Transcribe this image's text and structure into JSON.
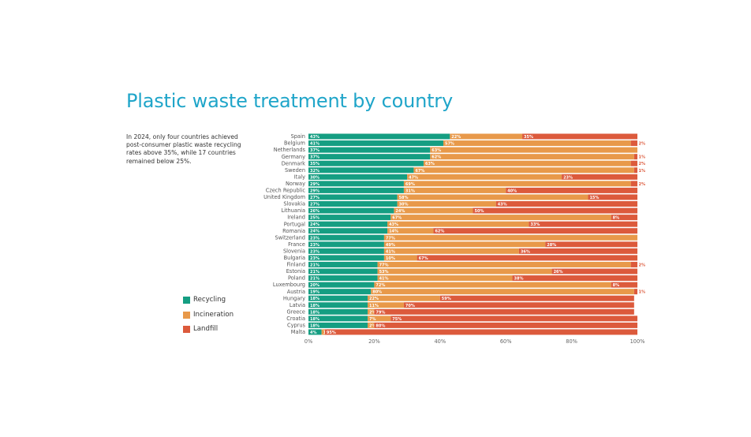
{
  "title": "Plastic waste treatment by country",
  "subtitle": "In 2024, only four countries achieved post-consumer plastic waste recycling rates above 35%, while 17 countries remained below 25%.",
  "legend": [
    {
      "label": "Recycling",
      "color": "#159e82"
    },
    {
      "label": "Incineration",
      "color": "#e8994a"
    },
    {
      "label": "Landfill",
      "color": "#dc5a3c"
    }
  ],
  "chart_data": {
    "type": "bar",
    "orientation": "horizontal",
    "stacked": true,
    "title": "Plastic waste treatment by country",
    "xlim": [
      0,
      100
    ],
    "x_ticks": [
      "0%",
      "20%",
      "40%",
      "60%",
      "80%",
      "100%"
    ],
    "legend_position": "left",
    "categories": [
      "Spain",
      "Belgium",
      "Netherlands",
      "Germany",
      "Denmark",
      "Sweden",
      "Italy",
      "Norway",
      "Czech Republic",
      "United Kingdom",
      "Slovakia",
      "Lithuania",
      "Ireland",
      "Portugal",
      "Romania",
      "Switzerland",
      "France",
      "Slovenia",
      "Bulgaria",
      "Finland",
      "Estonia",
      "Poland",
      "Luxembourg",
      "Austria",
      "Hungary",
      "Latvia",
      "Greece",
      "Croatia",
      "Cyprus",
      "Malta"
    ],
    "series": [
      {
        "name": "Recycling",
        "color": "#159e82",
        "values": [
          43,
          41,
          37,
          37,
          35,
          32,
          30,
          29,
          29,
          27,
          27,
          26,
          25,
          24,
          24,
          23,
          23,
          23,
          23,
          21,
          21,
          21,
          20,
          19,
          18,
          18,
          18,
          18,
          18,
          4
        ]
      },
      {
        "name": "Incineration",
        "color": "#e8994a",
        "values": [
          22,
          57,
          63,
          62,
          63,
          67,
          47,
          69,
          31,
          58,
          30,
          24,
          67,
          43,
          14,
          77,
          49,
          41,
          10,
          77,
          53,
          41,
          72,
          80,
          22,
          11,
          2,
          7,
          2,
          1
        ]
      },
      {
        "name": "Landfill",
        "color": "#dc5a3c",
        "values": [
          35,
          2,
          0,
          1,
          2,
          1,
          23,
          2,
          40,
          15,
          43,
          50,
          8,
          33,
          62,
          0,
          28,
          36,
          67,
          2,
          26,
          38,
          8,
          1,
          59,
          70,
          79,
          75,
          80,
          95
        ]
      }
    ],
    "data_labels": [
      [
        "43%",
        "22%",
        "35%"
      ],
      [
        "41%",
        "57%",
        "2%"
      ],
      [
        "37%",
        "63%",
        ""
      ],
      [
        "37%",
        "62%",
        "1%"
      ],
      [
        "35%",
        "63%",
        "2%"
      ],
      [
        "32%",
        "67%",
        "1%"
      ],
      [
        "30%",
        "47%",
        "23%"
      ],
      [
        "29%",
        "69%",
        "2%"
      ],
      [
        "29%",
        "31%",
        "40%"
      ],
      [
        "27%",
        "58%",
        "15%"
      ],
      [
        "27%",
        "30%",
        "43%"
      ],
      [
        "26%",
        "24%",
        "50%"
      ],
      [
        "25%",
        "67%",
        "8%"
      ],
      [
        "24%",
        "43%",
        "33%"
      ],
      [
        "24%",
        "14%",
        "62%"
      ],
      [
        "23%",
        "77%",
        ""
      ],
      [
        "23%",
        "49%",
        "28%"
      ],
      [
        "23%",
        "41%",
        "36%"
      ],
      [
        "23%",
        "10%",
        "67%"
      ],
      [
        "21%",
        "77%",
        "2%"
      ],
      [
        "21%",
        "53%",
        "26%"
      ],
      [
        "21%",
        "41%",
        "38%"
      ],
      [
        "20%",
        "72%",
        "8%"
      ],
      [
        "19%",
        "80%",
        "1%"
      ],
      [
        "18%",
        "22%",
        "59%"
      ],
      [
        "18%",
        "11%",
        "70%"
      ],
      [
        "18%",
        "2%",
        "79%"
      ],
      [
        "18%",
        "7%",
        "75%"
      ],
      [
        "18%",
        "2%",
        "80%"
      ],
      [
        "4%",
        "1%",
        "95%"
      ]
    ]
  }
}
